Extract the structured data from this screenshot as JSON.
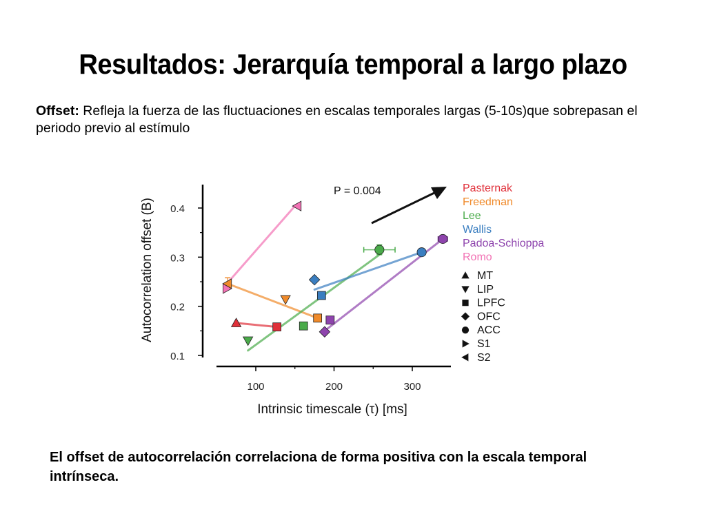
{
  "slide": {
    "title": "Resultados: Jerarquía temporal a largo plazo",
    "offset_label": "Offset:",
    "offset_text": " Refleja la fuerza de las fluctuaciones en escalas temporales largas (5-10s)que sobrepasan el periodo previo al estímulo",
    "conclusion": "El offset de autocorrelación correlaciona de forma positiva con la escala temporal intrínseca."
  },
  "chart_data": {
    "type": "scatter",
    "xlabel": "Intrinsic timescale (τ) [ms]",
    "ylabel": "Autocorrelation offset (B)",
    "xlim": [
      55,
      350
    ],
    "ylim": [
      0.1,
      0.42
    ],
    "xticks": [
      100,
      200,
      300
    ],
    "yticks": [
      0.1,
      0.2,
      0.3,
      0.4
    ],
    "xtick_labels": [
      "100",
      "200",
      "300"
    ],
    "ytick_labels": [
      "0.1",
      "0.2",
      "0.3",
      "0.4"
    ],
    "annotation": "P = 0.004",
    "legend_labs": [
      {
        "name": "Pasternak",
        "color": "#e0303a"
      },
      {
        "name": "Freedman",
        "color": "#f08a2a"
      },
      {
        "name": "Lee",
        "color": "#4aab4a"
      },
      {
        "name": "Wallis",
        "color": "#3a7ec0"
      },
      {
        "name": "Padoa-Schioppa",
        "color": "#8e44ad"
      },
      {
        "name": "Romo",
        "color": "#f272b4"
      }
    ],
    "legend_areas": [
      {
        "name": "MT",
        "marker": "triangle-up"
      },
      {
        "name": "LIP",
        "marker": "triangle-down"
      },
      {
        "name": "LPFC",
        "marker": "square"
      },
      {
        "name": "OFC",
        "marker": "diamond"
      },
      {
        "name": "ACC",
        "marker": "circle"
      },
      {
        "name": "S1",
        "marker": "triangle-right"
      },
      {
        "name": "S2",
        "marker": "triangle-left"
      }
    ],
    "points": [
      {
        "lab": "Pasternak",
        "area": "MT",
        "x": 75,
        "y": 0.166
      },
      {
        "lab": "Pasternak",
        "area": "LPFC",
        "x": 127,
        "y": 0.158
      },
      {
        "lab": "Freedman",
        "area": "S2",
        "x": 64,
        "y": 0.246
      },
      {
        "lab": "Freedman",
        "area": "LIP",
        "x": 138,
        "y": 0.214
      },
      {
        "lab": "Freedman",
        "area": "LPFC",
        "x": 179,
        "y": 0.176
      },
      {
        "lab": "Lee",
        "area": "LIP",
        "x": 90,
        "y": 0.13
      },
      {
        "lab": "Lee",
        "area": "LPFC",
        "x": 161,
        "y": 0.16
      },
      {
        "lab": "Lee",
        "area": "ACC",
        "x": 258,
        "y": 0.315
      },
      {
        "lab": "Wallis",
        "area": "OFC",
        "x": 175,
        "y": 0.254
      },
      {
        "lab": "Wallis",
        "area": "LPFC",
        "x": 184,
        "y": 0.222
      },
      {
        "lab": "Wallis",
        "area": "ACC",
        "x": 312,
        "y": 0.31
      },
      {
        "lab": "Padoa-Schioppa",
        "area": "OFC",
        "x": 188,
        "y": 0.148
      },
      {
        "lab": "Padoa-Schioppa",
        "area": "LPFC",
        "x": 195,
        "y": 0.172
      },
      {
        "lab": "Padoa-Schioppa",
        "area": "ACC",
        "x": 339,
        "y": 0.337
      },
      {
        "lab": "Romo",
        "area": "S1",
        "x": 63,
        "y": 0.236
      },
      {
        "lab": "Romo",
        "area": "S2",
        "x": 153,
        "y": 0.404
      }
    ],
    "fit_lines": [
      {
        "lab": "Pasternak",
        "from": [
          75,
          0.166
        ],
        "to": [
          127,
          0.158
        ]
      },
      {
        "lab": "Freedman",
        "from": [
          64,
          0.246
        ],
        "to": [
          179,
          0.176
        ]
      },
      {
        "lab": "Lee",
        "from": [
          90,
          0.11
        ],
        "to": [
          258,
          0.305
        ]
      },
      {
        "lab": "Wallis",
        "from": [
          175,
          0.234
        ],
        "to": [
          312,
          0.31
        ]
      },
      {
        "lab": "Padoa-Schioppa",
        "from": [
          188,
          0.15
        ],
        "to": [
          339,
          0.337
        ]
      },
      {
        "lab": "Romo",
        "from": [
          63,
          0.246
        ],
        "to": [
          150,
          0.404
        ]
      }
    ],
    "error_bars": [
      {
        "lab": "Lee",
        "x": 258,
        "y": 0.315,
        "x_err": [
          238,
          278
        ],
        "y_err": [
          0.305,
          0.325
        ]
      },
      {
        "lab": "Freedman",
        "x": 64,
        "y": 0.246,
        "y_err": [
          0.236,
          0.258
        ]
      },
      {
        "lab": "Padoa-Schioppa",
        "x": 339,
        "y": 0.337,
        "x_err": [
          333,
          345
        ]
      }
    ]
  }
}
